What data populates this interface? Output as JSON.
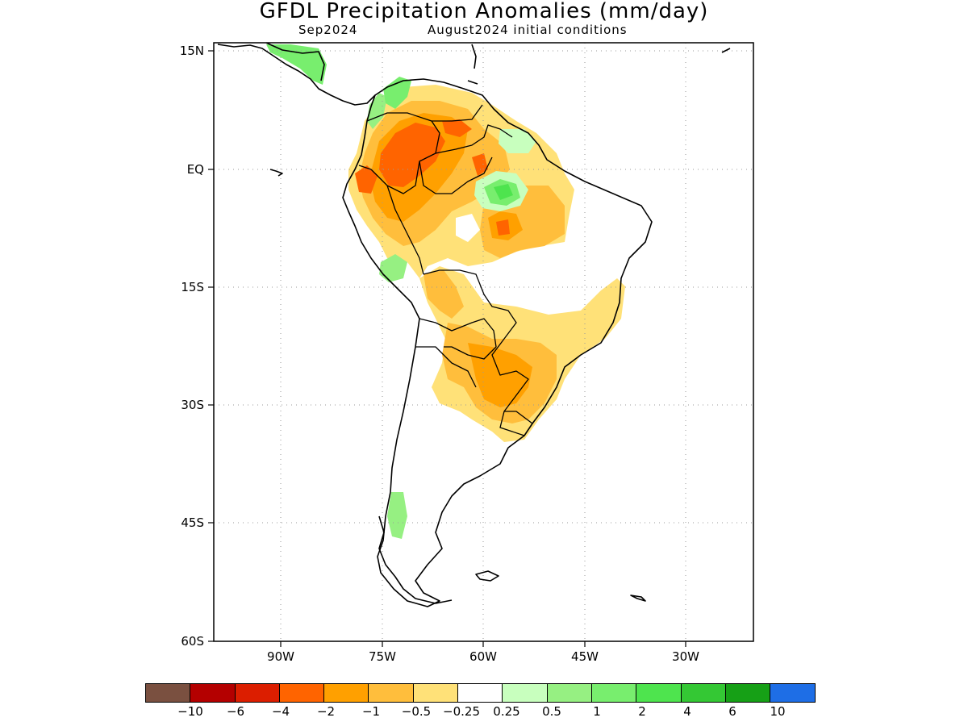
{
  "title": "GFDL Precipitation Anomalies (mm/day)",
  "subtitle_left": "Sep2024",
  "subtitle_right": "August2024 initial conditions",
  "lat_labels": [
    "15N",
    "EQ",
    "15S",
    "30S",
    "45S",
    "60S"
  ],
  "lon_labels": [
    "90W",
    "75W",
    "60W",
    "45W",
    "30W"
  ],
  "colors": {
    "c1": "#7a5040",
    "c2": "#b40000",
    "c3": "#dc1e00",
    "c4": "#ff6400",
    "c5": "#ffa000",
    "c6": "#ffbe3c",
    "c7": "#ffe178",
    "c8": "#ffffff",
    "c9": "#c8ffbe",
    "c10": "#96f082",
    "c11": "#78ee6e",
    "c12": "#4ee44e",
    "c13": "#34c834",
    "c14": "#16a016",
    "c15": "#1e6ee6"
  },
  "colorbar_colors": [
    "#7a5040",
    "#b40000",
    "#dc1e00",
    "#ff6400",
    "#ffa000",
    "#ffbe3c",
    "#ffe178",
    "#ffffff",
    "#c8ffbe",
    "#96f082",
    "#78ee6e",
    "#4ee44e",
    "#34c834",
    "#16a016",
    "#1e6ee6"
  ],
  "colorbar_labels": [
    "−10",
    "−6",
    "−4",
    "−2",
    "−1",
    "−0.5",
    "−0.25",
    "0.25",
    "0.5",
    "1",
    "2",
    "4",
    "6",
    "10"
  ]
}
